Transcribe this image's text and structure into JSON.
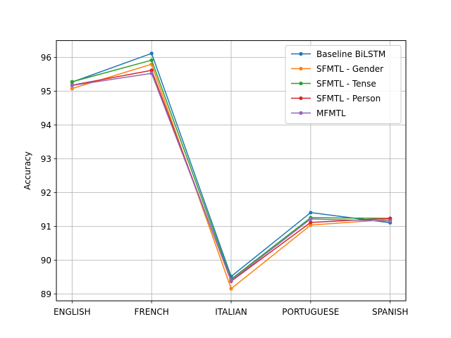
{
  "chart_data": {
    "type": "line",
    "title": "",
    "xlabel": "",
    "ylabel": "Accuracy",
    "categories": [
      "ENGLISH",
      "FRENCH",
      "ITALIAN",
      "PORTUGUESE",
      "SPANISH"
    ],
    "ylim": [
      88.8,
      96.5
    ],
    "yticks": [
      89,
      90,
      91,
      92,
      93,
      94,
      95,
      96
    ],
    "grid": true,
    "legend_position": "top-right",
    "series": [
      {
        "name": "Baseline BiLSTM",
        "color": "#1f77b4",
        "values": [
          95.27,
          96.12,
          89.52,
          91.41,
          91.11
        ]
      },
      {
        "name": "SFMTL - Gender",
        "color": "#ff7f0e",
        "values": [
          95.08,
          95.8,
          89.16,
          91.04,
          91.21
        ]
      },
      {
        "name": "SFMTL - Tense",
        "color": "#2ca02c",
        "values": [
          95.28,
          95.92,
          89.44,
          91.26,
          91.24
        ]
      },
      {
        "name": "SFMTL - Person",
        "color": "#d62728",
        "values": [
          95.18,
          95.62,
          89.38,
          91.12,
          91.24
        ]
      },
      {
        "name": "MFMTL",
        "color": "#9467bd",
        "values": [
          95.17,
          95.53,
          89.4,
          91.22,
          91.16
        ]
      }
    ]
  }
}
